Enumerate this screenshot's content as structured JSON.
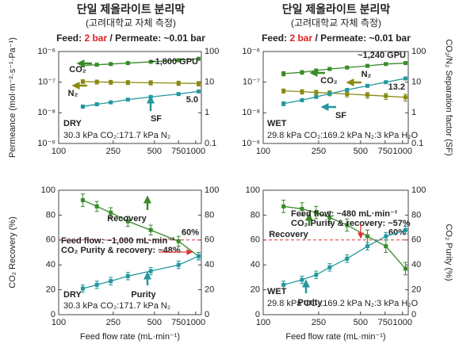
{
  "headers": [
    {
      "title": "단일 제올라이트 분리막",
      "subtitle": "(고려대학교 자체 측정)",
      "conditions": [
        "Feed:",
        "2 bar",
        "/ Permeate: ~0.01 bar"
      ]
    },
    {
      "title": "단일 제올라이트 분리막",
      "subtitle": "(고려대학교 자체 측정)",
      "conditions": [
        "Feed:",
        "2 bar",
        "/ Permeate: ~0.01 bar"
      ]
    }
  ],
  "chart_data": [
    {
      "type": "line",
      "xscale": "log",
      "yscale": "log",
      "ylabel": "Permeance (mol·m⁻²·s⁻¹·Pa⁻¹)",
      "x": [
        150,
        190,
        240,
        320,
        470,
        750,
        1050
      ],
      "xlim": [
        100,
        1100
      ],
      "xticks": [
        100,
        250,
        500,
        750,
        1000
      ],
      "ylim": [
        1e-09,
        1e-06
      ],
      "yticks": [
        {
          "value": 1e-09,
          "label": "10⁻⁹"
        },
        {
          "value": 1e-08,
          "label": "10⁻⁸"
        },
        {
          "value": 1e-07,
          "label": "10⁻⁷"
        },
        {
          "value": 1e-06,
          "label": "10⁻⁶"
        }
      ],
      "y2lim": [
        0.1,
        100
      ],
      "y2ticks": [
        0.1,
        1,
        10,
        100
      ],
      "series": [
        {
          "name": "CO₂",
          "color": "#3a8a2a",
          "values": [
            3.5e-07,
            3.7e-07,
            3.9e-07,
            4.2e-07,
            4.6e-07,
            5.2e-07,
            5.8e-07
          ],
          "errors": [
            3e-08,
            3e-08,
            3e-08,
            3e-08,
            3e-08,
            3e-08,
            3e-08
          ]
        },
        {
          "name": "N₂",
          "color": "#8a8a12",
          "values": [
            1.05e-07,
            1.02e-07,
            1e-07,
            9.8e-08,
            9.6e-08,
            9.3e-08,
            9e-08
          ],
          "errors": [
            1.5e-08,
            1.5e-08,
            1.5e-08,
            1.5e-08,
            1.5e-08,
            1.5e-08,
            1.5e-08
          ]
        },
        {
          "name": "SF",
          "color": "#23989e",
          "axis": "y2",
          "values": [
            1.6,
            1.9,
            2.2,
            2.7,
            3.3,
            4.1,
            5.0
          ],
          "errors": [
            0.2,
            0.2,
            0.2,
            0.2,
            0.2,
            0.2,
            0.2
          ],
          "value_labels": [
            null,
            null,
            null,
            null,
            null,
            null,
            "5.0"
          ]
        }
      ],
      "flux_note": "~1,800 GPU",
      "mode": "DRY",
      "condition": "30.3 kPa CO₂:171.7 kPa N₂"
    },
    {
      "type": "line",
      "xscale": "log",
      "yscale": "log",
      "y2label": "CO₂/N₂ Separation factor (SF)",
      "x": [
        140,
        190,
        240,
        300,
        400,
        560,
        760,
        1050
      ],
      "xlim": [
        100,
        1100
      ],
      "xticks": [
        100,
        250,
        500,
        750,
        1000
      ],
      "ylim": [
        1e-09,
        1e-06
      ],
      "yticks": [
        {
          "value": 1e-09,
          "label": "10⁻⁹"
        },
        {
          "value": 1e-08,
          "label": "10⁻⁸"
        },
        {
          "value": 1e-07,
          "label": "10⁻⁷"
        },
        {
          "value": 1e-06,
          "label": "10⁻⁶"
        }
      ],
      "y2lim": [
        0.1,
        100
      ],
      "y2ticks": [
        0.1,
        1,
        10,
        100
      ],
      "series": [
        {
          "name": "CO₂",
          "color": "#3a8a2a",
          "values": [
            1.9e-07,
            2.1e-07,
            2.4e-07,
            2.7e-07,
            3e-07,
            3.4e-07,
            3.9e-07,
            4.2e-07
          ],
          "errors": [
            3e-08,
            3e-08,
            3e-08,
            3e-08,
            3e-08,
            3e-08,
            3e-08,
            3e-08
          ]
        },
        {
          "name": "N₂",
          "color": "#8a8a12",
          "values": [
            5.2e-08,
            4.9e-08,
            4.6e-08,
            4.4e-08,
            4.1e-08,
            3.8e-08,
            3.5e-08,
            3.2e-08
          ],
          "errors": [
            8e-09,
            8e-09,
            8e-09,
            8e-09,
            8e-09,
            8e-09,
            8e-09,
            8e-09
          ]
        },
        {
          "name": "SF",
          "color": "#23989e",
          "axis": "y2",
          "values": [
            2.0,
            2.6,
            3.3,
            4.2,
            5.6,
            7.6,
            10.0,
            13.2
          ],
          "errors": [
            0.3,
            0.3,
            0.3,
            0.3,
            0.3,
            0.3,
            0.3,
            0.3
          ],
          "value_labels": [
            null,
            null,
            null,
            null,
            null,
            null,
            null,
            "13.2"
          ]
        }
      ],
      "flux_note": "~1,240 GPU",
      "mode": "WET",
      "condition": "29.8 kPa CO₂:169.2 kPa N₂:3 kPa H₂O"
    },
    {
      "type": "line",
      "xscale": "linear-y",
      "ylabel": "CO₂ Recovery (%)",
      "xlabel": "Feed flow rate (mL·min⁻¹)",
      "x": [
        150,
        190,
        240,
        320,
        470,
        750,
        1050
      ],
      "xlim": [
        100,
        1100
      ],
      "xticks": [
        100,
        250,
        500,
        750,
        1000
      ],
      "ylim": [
        0,
        100
      ],
      "yticks": [
        0,
        20,
        40,
        60,
        80,
        100
      ],
      "y2lim": [
        0,
        100
      ],
      "y2ticks": [
        0,
        20,
        40,
        60,
        80,
        100
      ],
      "series": [
        {
          "name": "Recovery",
          "color": "#3a8a2a",
          "values": [
            92,
            87,
            82,
            75,
            68,
            59,
            47
          ],
          "errors": [
            5,
            4,
            4,
            4,
            4,
            4,
            3
          ]
        },
        {
          "name": "Purity",
          "color": "#23989e",
          "axis": "y2",
          "values": [
            21,
            24,
            27,
            31,
            35,
            40,
            47
          ],
          "errors": [
            3,
            3,
            3,
            3,
            3,
            3,
            3
          ]
        }
      ],
      "threshold": {
        "value": 60,
        "label": "60%",
        "color": "#e03030"
      },
      "note": [
        "Feed flow: ~1,000 mL·min⁻¹",
        "CO₂ Purity & recovery: ~48%"
      ],
      "mode": "DRY",
      "condition": "30.3 kPa CO₂:171.7 kPa N₂"
    },
    {
      "type": "line",
      "xscale": "linear-y",
      "y2label": "CO₂ Purity (%)",
      "xlabel": "Feed flow rate (mL·min⁻¹)",
      "x": [
        140,
        190,
        240,
        300,
        400,
        560,
        760,
        1050
      ],
      "xlim": [
        100,
        1100
      ],
      "xticks": [
        100,
        250,
        500,
        750,
        1000
      ],
      "ylim": [
        0,
        100
      ],
      "yticks": [
        0,
        20,
        40,
        60,
        80,
        100
      ],
      "y2lim": [
        0,
        100
      ],
      "y2ticks": [
        0,
        20,
        40,
        60,
        80,
        100
      ],
      "series": [
        {
          "name": "Recovery",
          "color": "#3a8a2a",
          "values": [
            87,
            85,
            82,
            78,
            72,
            63,
            55,
            37
          ],
          "errors": [
            5,
            5,
            5,
            5,
            5,
            5,
            5,
            5
          ]
        },
        {
          "name": "Purity",
          "color": "#23989e",
          "axis": "y2",
          "values": [
            24,
            28,
            32,
            38,
            45,
            55,
            63,
            68
          ],
          "errors": [
            3,
            3,
            3,
            3,
            3,
            3,
            3,
            3
          ]
        }
      ],
      "threshold": {
        "value": 60,
        "label": "60%",
        "color": "#e03030"
      },
      "note": [
        "Feed flow: ~480 mL·min⁻¹",
        "CO₂ Purity & recovery: ~57%"
      ],
      "mode": "WET",
      "condition": "29.8 kPa CO₂:169.2 kPa N₂:3 kPa H₂O"
    }
  ]
}
